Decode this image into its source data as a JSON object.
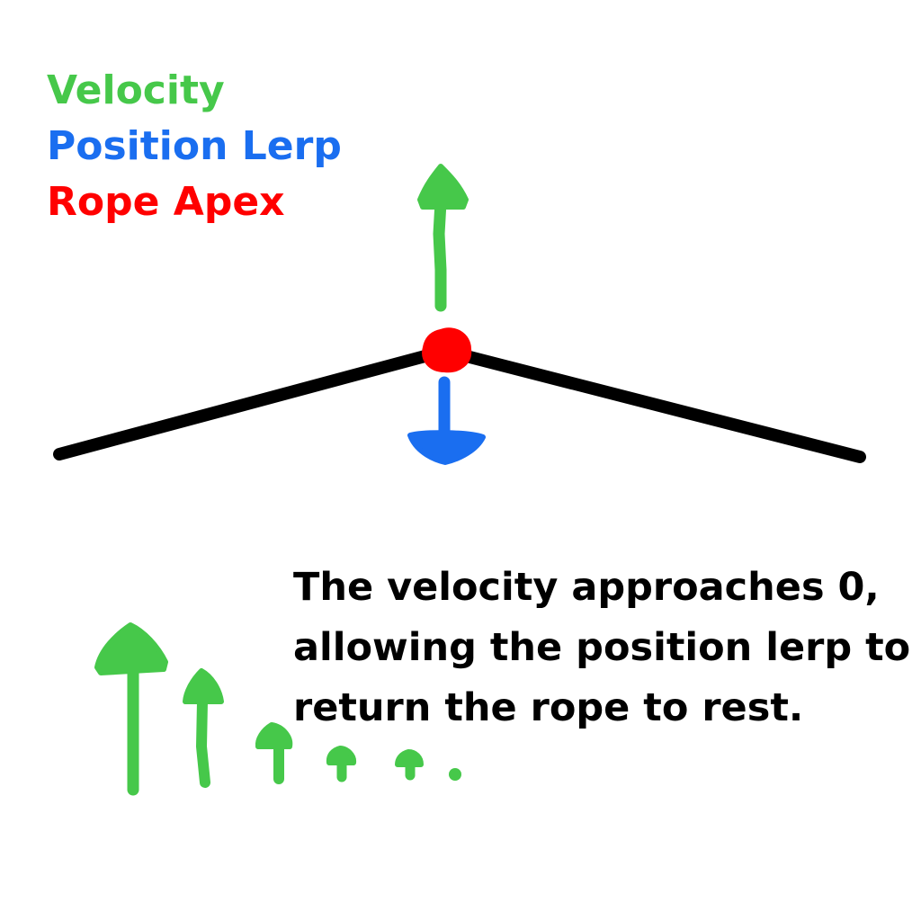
{
  "legend": {
    "velocity": "Velocity",
    "position_lerp": "Position Lerp",
    "rope_apex": "Rope Apex"
  },
  "caption": {
    "line1": "The velocity approaches 0,",
    "line2": "allowing the position lerp to",
    "line3": "return the rope to rest."
  },
  "colors": {
    "velocity": "#46c84a",
    "position_lerp": "#1a6ef0",
    "rope_apex": "#ff0000",
    "rope": "#000000"
  },
  "velocity_sequence": {
    "shown_trend": "decreasing to 0",
    "relative_magnitudes": [
      1.0,
      0.75,
      0.32,
      0.14,
      0.1,
      0.0
    ]
  }
}
